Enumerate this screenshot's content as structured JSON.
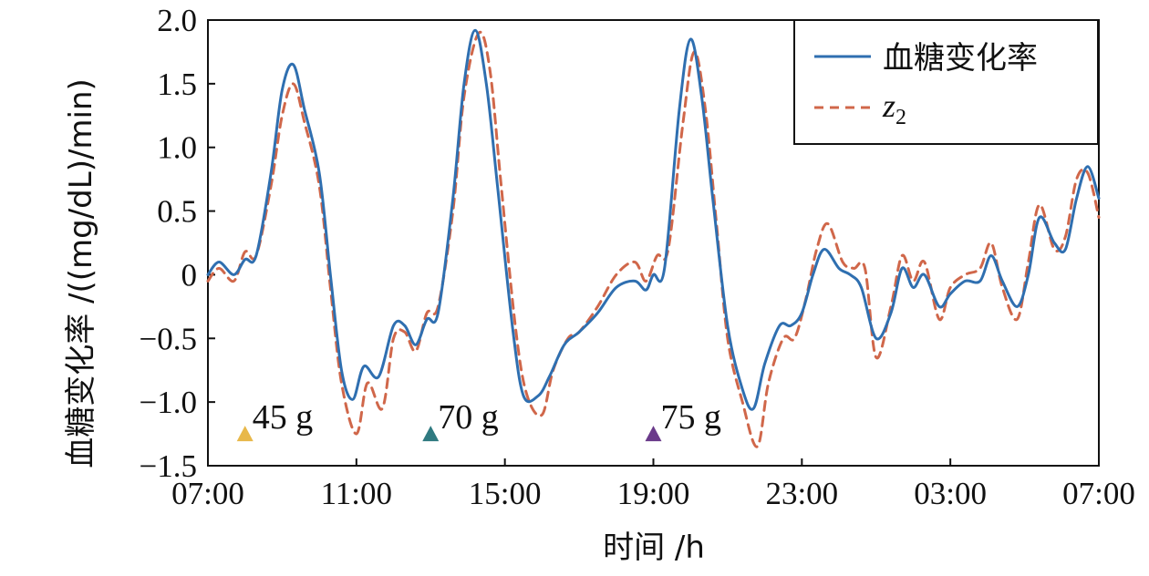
{
  "chart_data": {
    "type": "line",
    "xlabel": "时间 /h",
    "ylabel": "血糖变化率 /((mg/dL)/min)",
    "x_range": [
      7.0,
      31.0
    ],
    "ylim": [
      -1.5,
      2.0
    ],
    "x_ticks": [
      {
        "value": 7,
        "label": "07:00"
      },
      {
        "value": 11,
        "label": "11:00"
      },
      {
        "value": 15,
        "label": "15:00"
      },
      {
        "value": 19,
        "label": "19:00"
      },
      {
        "value": 23,
        "label": "23:00"
      },
      {
        "value": 27,
        "label": "03:00"
      },
      {
        "value": 31,
        "label": "07:00"
      }
    ],
    "y_ticks": [
      {
        "value": 2.0,
        "label": "2.0"
      },
      {
        "value": 1.5,
        "label": "1.5"
      },
      {
        "value": 1.0,
        "label": "1.0"
      },
      {
        "value": 0.5,
        "label": "0.5"
      },
      {
        "value": 0.0,
        "label": "0"
      },
      {
        "value": -0.5,
        "label": "−0.5"
      },
      {
        "value": -1.0,
        "label": "−1.0"
      },
      {
        "value": -1.5,
        "label": "−1.5"
      }
    ],
    "grid": false,
    "legend_position": "top-right",
    "series": [
      {
        "name": "血糖变化率",
        "color": "#2f6fb0",
        "style": "solid",
        "points": [
          [
            7.0,
            0.0
          ],
          [
            7.3,
            0.1
          ],
          [
            7.7,
            0.0
          ],
          [
            8.0,
            0.12
          ],
          [
            8.3,
            0.15
          ],
          [
            8.7,
            0.8
          ],
          [
            9.0,
            1.45
          ],
          [
            9.3,
            1.65
          ],
          [
            9.6,
            1.3
          ],
          [
            10.0,
            0.8
          ],
          [
            10.3,
            0.0
          ],
          [
            10.6,
            -0.75
          ],
          [
            10.9,
            -0.98
          ],
          [
            11.2,
            -0.72
          ],
          [
            11.6,
            -0.8
          ],
          [
            12.0,
            -0.4
          ],
          [
            12.3,
            -0.4
          ],
          [
            12.6,
            -0.55
          ],
          [
            12.9,
            -0.35
          ],
          [
            13.2,
            -0.3
          ],
          [
            13.6,
            0.6
          ],
          [
            13.9,
            1.5
          ],
          [
            14.2,
            1.92
          ],
          [
            14.5,
            1.5
          ],
          [
            14.8,
            0.7
          ],
          [
            15.2,
            -0.4
          ],
          [
            15.5,
            -0.95
          ],
          [
            15.9,
            -0.95
          ],
          [
            16.2,
            -0.8
          ],
          [
            16.6,
            -0.55
          ],
          [
            17.0,
            -0.45
          ],
          [
            17.5,
            -0.3
          ],
          [
            18.0,
            -0.1
          ],
          [
            18.5,
            -0.05
          ],
          [
            18.8,
            -0.12
          ],
          [
            19.0,
            0.0
          ],
          [
            19.3,
            0.05
          ],
          [
            19.7,
            1.3
          ],
          [
            20.0,
            1.85
          ],
          [
            20.3,
            1.4
          ],
          [
            20.6,
            0.6
          ],
          [
            21.0,
            -0.4
          ],
          [
            21.4,
            -0.9
          ],
          [
            21.7,
            -1.05
          ],
          [
            22.0,
            -0.7
          ],
          [
            22.4,
            -0.4
          ],
          [
            22.7,
            -0.4
          ],
          [
            23.0,
            -0.3
          ],
          [
            23.3,
            0.0
          ],
          [
            23.6,
            0.2
          ],
          [
            24.0,
            0.05
          ],
          [
            24.3,
            0.0
          ],
          [
            24.6,
            -0.1
          ],
          [
            25.0,
            -0.5
          ],
          [
            25.4,
            -0.3
          ],
          [
            25.7,
            0.05
          ],
          [
            26.0,
            -0.1
          ],
          [
            26.3,
            0.0
          ],
          [
            26.7,
            -0.25
          ],
          [
            27.0,
            -0.15
          ],
          [
            27.4,
            -0.05
          ],
          [
            27.8,
            -0.05
          ],
          [
            28.1,
            0.15
          ],
          [
            28.4,
            -0.05
          ],
          [
            28.8,
            -0.25
          ],
          [
            29.1,
            0.0
          ],
          [
            29.4,
            0.45
          ],
          [
            29.8,
            0.25
          ],
          [
            30.1,
            0.2
          ],
          [
            30.4,
            0.6
          ],
          [
            30.7,
            0.85
          ],
          [
            31.0,
            0.6
          ]
        ]
      },
      {
        "name": "z2",
        "color": "#d0674a",
        "style": "dashed",
        "points": [
          [
            7.0,
            -0.05
          ],
          [
            7.3,
            0.05
          ],
          [
            7.7,
            -0.05
          ],
          [
            8.0,
            0.18
          ],
          [
            8.3,
            0.15
          ],
          [
            8.7,
            0.7
          ],
          [
            9.0,
            1.25
          ],
          [
            9.3,
            1.5
          ],
          [
            9.6,
            1.2
          ],
          [
            10.0,
            0.7
          ],
          [
            10.3,
            -0.1
          ],
          [
            10.6,
            -0.85
          ],
          [
            11.0,
            -1.25
          ],
          [
            11.3,
            -0.85
          ],
          [
            11.7,
            -1.05
          ],
          [
            12.0,
            -0.5
          ],
          [
            12.3,
            -0.45
          ],
          [
            12.6,
            -0.6
          ],
          [
            12.9,
            -0.3
          ],
          [
            13.2,
            -0.25
          ],
          [
            13.6,
            0.5
          ],
          [
            13.9,
            1.4
          ],
          [
            14.3,
            1.9
          ],
          [
            14.6,
            1.6
          ],
          [
            14.9,
            0.7
          ],
          [
            15.3,
            -0.45
          ],
          [
            15.6,
            -0.95
          ],
          [
            16.0,
            -1.1
          ],
          [
            16.3,
            -0.75
          ],
          [
            16.7,
            -0.5
          ],
          [
            17.0,
            -0.45
          ],
          [
            17.5,
            -0.25
          ],
          [
            18.0,
            0.0
          ],
          [
            18.5,
            0.1
          ],
          [
            18.8,
            -0.05
          ],
          [
            19.1,
            0.15
          ],
          [
            19.4,
            0.2
          ],
          [
            19.8,
            1.2
          ],
          [
            20.1,
            1.75
          ],
          [
            20.4,
            1.3
          ],
          [
            20.7,
            0.4
          ],
          [
            21.0,
            -0.5
          ],
          [
            21.4,
            -1.0
          ],
          [
            21.8,
            -1.35
          ],
          [
            22.1,
            -0.85
          ],
          [
            22.5,
            -0.5
          ],
          [
            22.8,
            -0.5
          ],
          [
            23.1,
            -0.2
          ],
          [
            23.4,
            0.2
          ],
          [
            23.7,
            0.4
          ],
          [
            24.1,
            0.1
          ],
          [
            24.4,
            0.05
          ],
          [
            24.7,
            0.05
          ],
          [
            25.0,
            -0.65
          ],
          [
            25.4,
            -0.25
          ],
          [
            25.7,
            0.15
          ],
          [
            26.0,
            -0.05
          ],
          [
            26.3,
            0.1
          ],
          [
            26.7,
            -0.35
          ],
          [
            27.0,
            -0.1
          ],
          [
            27.4,
            0.0
          ],
          [
            27.8,
            0.05
          ],
          [
            28.1,
            0.25
          ],
          [
            28.4,
            -0.1
          ],
          [
            28.8,
            -0.35
          ],
          [
            29.1,
            0.1
          ],
          [
            29.4,
            0.55
          ],
          [
            29.8,
            0.2
          ],
          [
            30.1,
            0.3
          ],
          [
            30.4,
            0.75
          ],
          [
            30.7,
            0.8
          ],
          [
            31.0,
            0.45
          ]
        ]
      }
    ],
    "legend": {
      "items": [
        {
          "label": "血糖变化率",
          "color": "#2f6fb0",
          "style": "solid"
        },
        {
          "label": "z",
          "subscript": "2",
          "color": "#d0674a",
          "style": "dashed"
        }
      ]
    },
    "annotations": [
      {
        "x": 8.0,
        "y": -1.25,
        "label": "45 g",
        "color": "#e8b84a"
      },
      {
        "x": 13.0,
        "y": -1.25,
        "label": "70 g",
        "color": "#2f7a80"
      },
      {
        "x": 19.0,
        "y": -1.25,
        "label": "75 g",
        "color": "#6a3a8a"
      }
    ]
  }
}
